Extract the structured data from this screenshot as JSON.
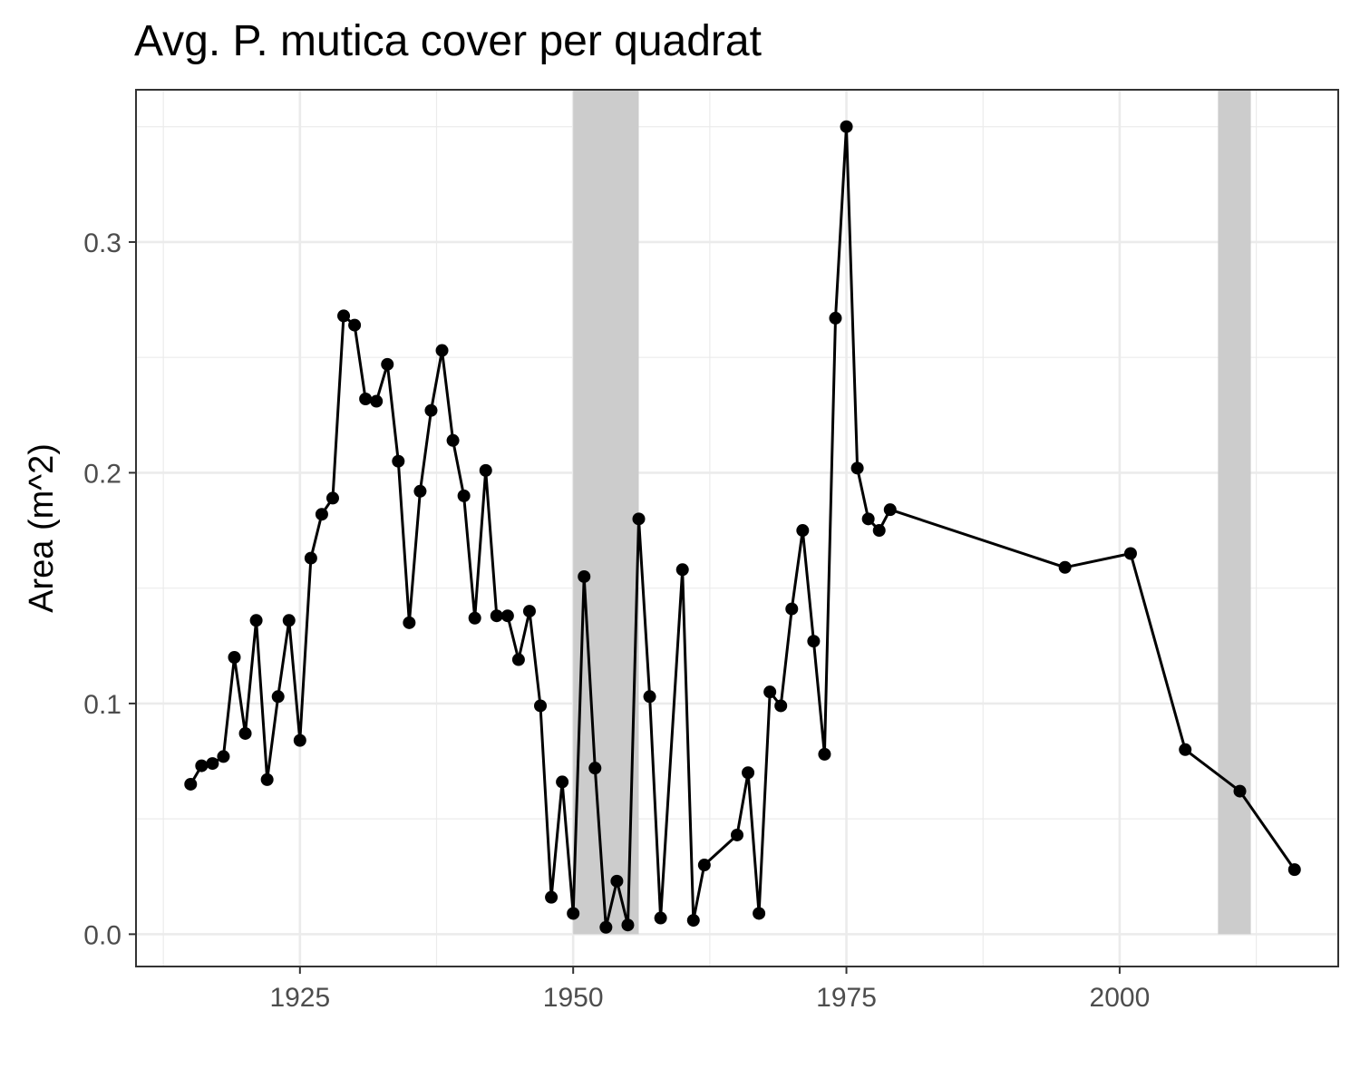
{
  "chart_data": {
    "type": "line",
    "title": "Avg. P. mutica cover per quadrat",
    "xlabel": "",
    "ylabel": "Area (m^2)",
    "xlim": [
      1910,
      2020
    ],
    "ylim": [
      -0.014,
      0.366
    ],
    "x_ticks": [
      1925,
      1950,
      1975,
      2000
    ],
    "x_tick_labels": [
      "1925",
      "1950",
      "1975",
      "2000"
    ],
    "y_ticks": [
      0.0,
      0.1,
      0.2,
      0.3
    ],
    "y_tick_labels": [
      "0.0",
      "0.1",
      "0.2",
      "0.3"
    ],
    "grid": true,
    "legend": "none",
    "shaded_periods": [
      {
        "start": 1950,
        "end": 1956
      },
      {
        "start": 2009,
        "end": 2012
      }
    ],
    "colors": {
      "line": "#000000",
      "point": "#000000",
      "shade": "#cccccc",
      "grid": "#ebebeb",
      "panel_border": "#333333"
    },
    "series": [
      {
        "x": [
          1915,
          1916,
          1917,
          1918,
          1919,
          1920,
          1921,
          1922,
          1923,
          1924,
          1925,
          1926,
          1927,
          1928,
          1929,
          1930,
          1931,
          1932,
          1933,
          1934,
          1935,
          1936,
          1937,
          1938,
          1939,
          1940,
          1941,
          1942,
          1943,
          1944,
          1945,
          1946,
          1947,
          1948,
          1949,
          1950,
          1951,
          1952,
          1953,
          1954,
          1955,
          1956,
          1957,
          1958,
          1960,
          1961,
          1962,
          1965,
          1966,
          1967,
          1968,
          1969,
          1970,
          1971,
          1972,
          1973,
          1974,
          1975,
          1976,
          1977,
          1978,
          1979,
          1995,
          2001,
          2006,
          2011,
          2016
        ],
        "values": [
          0.065,
          0.073,
          0.074,
          0.077,
          0.12,
          0.087,
          0.136,
          0.067,
          0.103,
          0.136,
          0.084,
          0.163,
          0.182,
          0.189,
          0.268,
          0.264,
          0.232,
          0.231,
          0.247,
          0.205,
          0.135,
          0.192,
          0.227,
          0.253,
          0.214,
          0.19,
          0.137,
          0.201,
          0.138,
          0.138,
          0.119,
          0.14,
          0.099,
          0.016,
          0.066,
          0.009,
          0.155,
          0.072,
          0.003,
          0.023,
          0.004,
          0.18,
          0.103,
          0.007,
          0.158,
          0.006,
          0.03,
          0.043,
          0.07,
          0.009,
          0.105,
          0.099,
          0.141,
          0.175,
          0.127,
          0.078,
          0.267,
          0.35,
          0.202,
          0.18,
          0.175,
          0.184,
          0.159,
          0.165,
          0.08,
          0.062,
          0.028
        ]
      }
    ]
  }
}
